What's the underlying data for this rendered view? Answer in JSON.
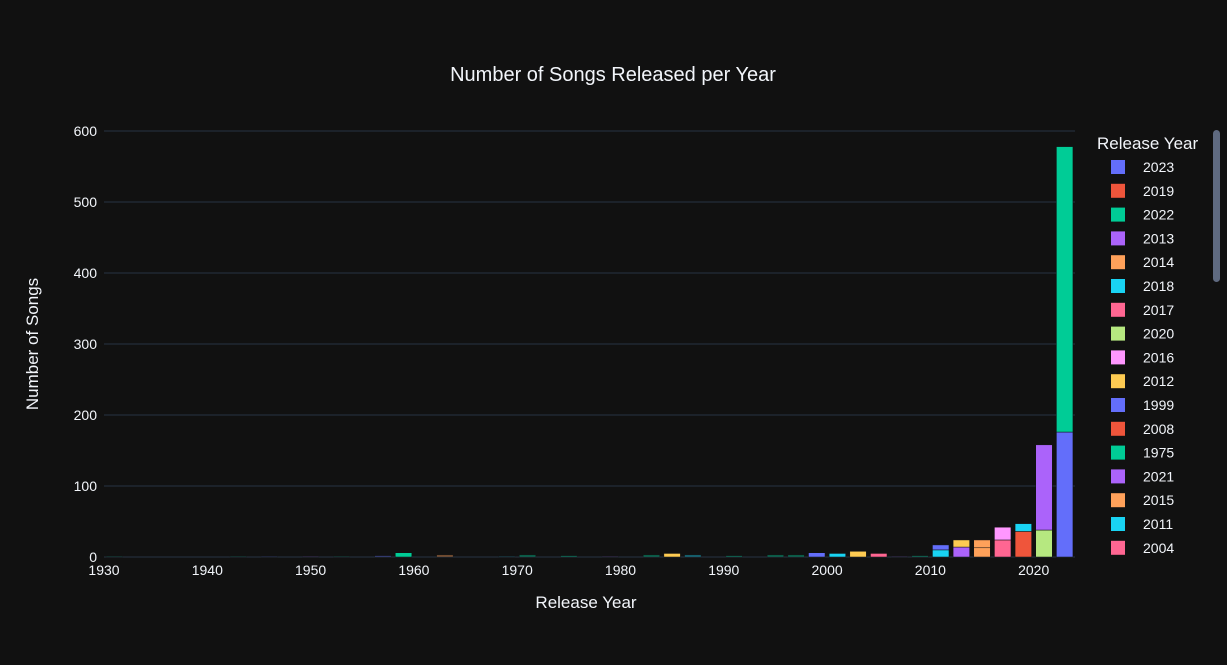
{
  "chart_data": {
    "type": "bar",
    "barmode": "stack",
    "title": "Number of Songs Released per Year",
    "xlabel": "Release Year",
    "ylabel": "Number of Songs",
    "xlim": [
      1930,
      2024
    ],
    "ylim": [
      0,
      600
    ],
    "x_ticks": [
      "1930",
      "1940",
      "1950",
      "1960",
      "1970",
      "1980",
      "1990",
      "2000",
      "2010",
      "2020"
    ],
    "y_ticks": [
      "0",
      "100",
      "200",
      "300",
      "400",
      "500",
      "600"
    ],
    "grid": true,
    "legend_title": "Release Year",
    "legend_position": "right",
    "background": "#111111",
    "bars": [
      {
        "x": 1931,
        "value": 1,
        "color": "#00cc96"
      },
      {
        "x": 1943,
        "value": 1,
        "color": "#00cc96"
      },
      {
        "x": 1946,
        "value": 1,
        "color": "#636efa"
      },
      {
        "x": 1950,
        "value": 1,
        "color": "#ab63fa"
      },
      {
        "x": 1953,
        "value": 1,
        "color": "#00cc96"
      },
      {
        "x": 1957,
        "value": 2,
        "color": "#636efa"
      },
      {
        "x": 1959,
        "value": 6,
        "color": "#00cc96"
      },
      {
        "x": 1963,
        "value": 3,
        "color": "#ffa15a"
      },
      {
        "x": 1969,
        "value": 1,
        "color": "#19d3f3"
      },
      {
        "x": 1971,
        "value": 3,
        "color": "#00cc96"
      },
      {
        "x": 1975,
        "value": 2,
        "color": "#00cc96"
      },
      {
        "x": 1979,
        "value": 1,
        "color": "#ab63fa"
      },
      {
        "x": 1983,
        "value": 3,
        "color": "#00cc96"
      },
      {
        "x": 1985,
        "value": 5,
        "color": "#fecb52"
      },
      {
        "x": 1987,
        "value": 3,
        "color": "#19d3f3"
      },
      {
        "x": 1991,
        "value": 2,
        "color": "#00cc96"
      },
      {
        "x": 1995,
        "value": 3,
        "color": "#00cc96"
      },
      {
        "x": 1997,
        "value": 3,
        "color": "#00cc96"
      },
      {
        "x": 1999,
        "value": 6,
        "color": "#636efa"
      },
      {
        "x": 2001,
        "value": 5,
        "color": "#19d3f3"
      },
      {
        "x": 2003,
        "value": 8,
        "color": "#fecb52"
      },
      {
        "x": 2005,
        "value": 5,
        "color": "#ff6692"
      },
      {
        "x": 2007,
        "value": 1,
        "color": "#ab63fa"
      },
      {
        "x": 2009,
        "value": 2,
        "color": "#00cc96"
      },
      {
        "x": 2011,
        "value": 10,
        "color": "#19d3f3"
      },
      {
        "x": 2011,
        "value": 7,
        "color": "#636efa"
      },
      {
        "x": 2013,
        "value": 14,
        "color": "#ab63fa"
      },
      {
        "x": 2013,
        "value": 10,
        "color": "#fecb52"
      },
      {
        "x": 2015,
        "value": 13,
        "color": "#ffa15a"
      },
      {
        "x": 2015,
        "value": 11,
        "color": "#ffa15a"
      },
      {
        "x": 2017,
        "value": 24,
        "color": "#ff6692"
      },
      {
        "x": 2017,
        "value": 18,
        "color": "#ff97ff"
      },
      {
        "x": 2019,
        "value": 36,
        "color": "#ef553b"
      },
      {
        "x": 2019,
        "value": 11,
        "color": "#19d3f3"
      },
      {
        "x": 2021,
        "value": 38,
        "color": "#b6e880"
      },
      {
        "x": 2021,
        "value": 120,
        "color": "#ab63fa"
      },
      {
        "x": 2023,
        "value": 176,
        "color": "#636efa"
      },
      {
        "x": 2023,
        "value": 402,
        "color": "#00cc96"
      }
    ],
    "legend": [
      {
        "label": "2023",
        "color": "#636efa"
      },
      {
        "label": "2019",
        "color": "#ef553b"
      },
      {
        "label": "2022",
        "color": "#00cc96"
      },
      {
        "label": "2013",
        "color": "#ab63fa"
      },
      {
        "label": "2014",
        "color": "#ffa15a"
      },
      {
        "label": "2018",
        "color": "#19d3f3"
      },
      {
        "label": "2017",
        "color": "#ff6692"
      },
      {
        "label": "2020",
        "color": "#b6e880"
      },
      {
        "label": "2016",
        "color": "#ff97ff"
      },
      {
        "label": "2012",
        "color": "#fecb52"
      },
      {
        "label": "1999",
        "color": "#636efa"
      },
      {
        "label": "2008",
        "color": "#ef553b"
      },
      {
        "label": "1975",
        "color": "#00cc96"
      },
      {
        "label": "2021",
        "color": "#ab63fa"
      },
      {
        "label": "2015",
        "color": "#ffa15a"
      },
      {
        "label": "2011",
        "color": "#19d3f3"
      },
      {
        "label": "2004",
        "color": "#ff6692"
      }
    ]
  }
}
